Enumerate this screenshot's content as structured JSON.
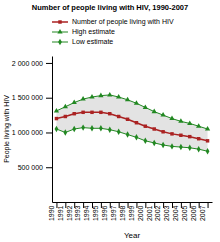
{
  "chart_data": {
    "type": "line",
    "title": "Number of people living with HIV, 1990-2007",
    "xlabel": "Year",
    "ylabel": "People living with HIV",
    "x": [
      1990,
      1991,
      1992,
      1993,
      1994,
      1995,
      1996,
      1997,
      1998,
      1999,
      2000,
      2001,
      2002,
      2003,
      2004,
      2005,
      2006,
      2007
    ],
    "series": [
      {
        "name": "Number of people living with HIV",
        "color": "#aa2222",
        "marker": "square",
        "values": [
          1200000,
          1230000,
          1270000,
          1290000,
          1290000,
          1290000,
          1270000,
          1230000,
          1190000,
          1140000,
          1090000,
          1050000,
          1010000,
          980000,
          960000,
          940000,
          910000,
          880000
        ]
      },
      {
        "name": "High estimate",
        "color": "#228822",
        "marker": "triangle",
        "values": [
          1310000,
          1370000,
          1430000,
          1480000,
          1510000,
          1530000,
          1540000,
          1510000,
          1470000,
          1420000,
          1360000,
          1300000,
          1250000,
          1200000,
          1160000,
          1130000,
          1090000,
          1050000
        ]
      },
      {
        "name": "Low estimate",
        "color": "#228822",
        "marker": "diamond",
        "values": [
          1050000,
          1000000,
          1050000,
          1070000,
          1060000,
          1060000,
          1040000,
          1010000,
          970000,
          930000,
          880000,
          850000,
          820000,
          800000,
          790000,
          780000,
          760000,
          730000
        ]
      }
    ],
    "xlim": [
      1989.5,
      2007.5
    ],
    "xticks": [
      1990,
      1991,
      1992,
      1993,
      1994,
      1995,
      1996,
      1997,
      1998,
      1999,
      2000,
      2001,
      2002,
      2003,
      2004,
      2005,
      2006,
      2007
    ],
    "ylim": [
      0,
      2100000
    ],
    "yticks": [
      {
        "value": 500000,
        "label": "500 000"
      },
      {
        "value": 1000000,
        "label": "1 000 000"
      },
      {
        "value": 1500000,
        "label": "1 500 000"
      },
      {
        "value": 2000000,
        "label": "2 000 000"
      }
    ],
    "grid": false,
    "legend": "top"
  }
}
